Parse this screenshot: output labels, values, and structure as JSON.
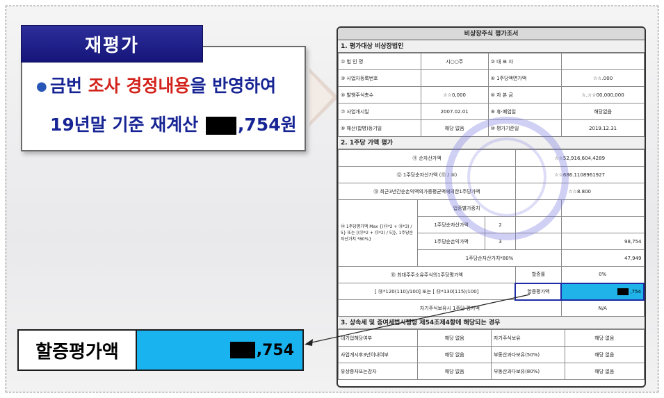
{
  "callout": {
    "badge": "재평가",
    "line1": {
      "a": "금번 ",
      "b": "조사 경정내용",
      "c": "을 반영하여"
    },
    "line2_prefix": "19년말 기준 재계산 ",
    "line2_suffix": ",754원"
  },
  "form": {
    "title": "비상장주식 평가조서",
    "section1": "1. 평가대상 비상장법인",
    "s1_rows": [
      [
        "① 법 인 명",
        "시○○주",
        "② 대 표 자",
        ""
      ],
      [
        "③ 사업자등록번호",
        "",
        "④ 1주당액면가액",
        "☆☆.000"
      ],
      [
        "⑤ 발행주식총수",
        "☆☆0,000",
        "⑥ 자 본 금",
        "☆.☆☆00,000,000"
      ],
      [
        "⑦ 사업개시일",
        "2007.02.01",
        "⑧ 휴·폐업일",
        "해당없음"
      ],
      [
        "⑨ 해산(합병)등기일",
        "해당 없음",
        "⑩ 평가기준일",
        "2019.12.31"
      ]
    ],
    "section2": "2. 1주당 가액 평가",
    "s2_rows": [
      [
        "⑪ 순자산가액",
        "☆☆52,916,604,4289"
      ],
      [
        "⑫ 1주당순자산가액 (⑪ / ⑤)",
        "☆☆686.1108961927"
      ],
      [
        "⑬ 최근3년간순손익액의가중평균액에의한1주당가액",
        "☆☆8.800"
      ]
    ],
    "weighted_header": "업종별가중치",
    "formula_label": "⑭ 1주당평가액 Max {(⑫*2 + ⑬*3) / 5} 또는 [(⑫*2 + ⑬*2) / 5]}, 1주당순자산가치 *80%}",
    "w_rows": [
      [
        "1주당순자산가액",
        "2",
        ""
      ],
      [
        "1주당순손익가액",
        "3",
        "98,754"
      ],
      [
        "1주당순자산가치*80%",
        "",
        "47,949"
      ]
    ],
    "majority_label": "⑮ 최대주주소유주식의1주당평가액",
    "ratio_label": "할증률",
    "ratio_value": "0%",
    "formula2": "[ ⑭*120(110)/100]   또는   [ ⑭*130(115)/100]",
    "premium_label": "할증평가액",
    "premium_value": ",754",
    "own_label": "자기주식보유시 1주당 평가액",
    "own_value": "N/A",
    "section3": "3. 상속세 및 증여세법시행령 제54조제4항에 해당되는 경우",
    "s3_rows": [
      [
        "대기업해당여부",
        "해당 없음",
        "자기주식보유",
        "해당 없음"
      ],
      [
        "사업개시후3년이내여부",
        "해당 없음",
        "부동산과다보유(50%)",
        "해당 없음"
      ],
      [
        "유상증자또는감자",
        "해당 없음",
        "부동산과다보유(80%)",
        "해당 없음"
      ]
    ]
  },
  "result": {
    "label": "할증평가액",
    "value_suffix": ",754"
  }
}
